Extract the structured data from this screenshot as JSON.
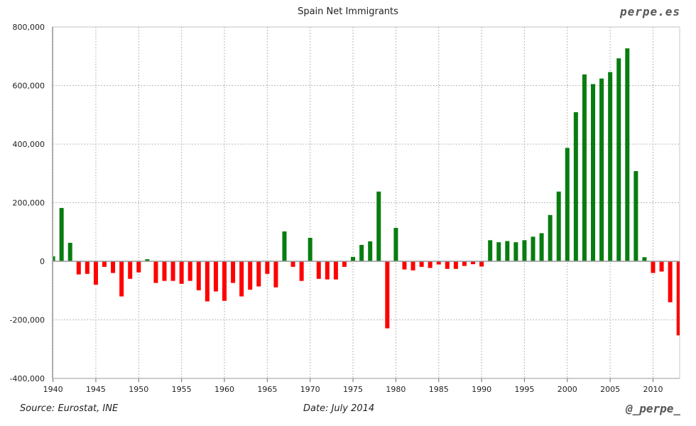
{
  "header": {
    "title": "Spain Net Immigrants",
    "brand": "perpe.es"
  },
  "footer": {
    "source": "Source: Eurostat, INE",
    "date": "Date: July 2014",
    "handle": "@_perpe_"
  },
  "colors": {
    "positive": "#077d10",
    "negative": "#ff0000",
    "grid": "#b8b8b8"
  },
  "chart_data": {
    "type": "bar",
    "title": "Spain Net Immigrants",
    "xlabel": "",
    "ylabel": "",
    "ylim": [
      -400000,
      800000
    ],
    "xlim": [
      1940,
      2013
    ],
    "grid": true,
    "y_ticks": [
      -400000,
      -200000,
      0,
      200000,
      400000,
      600000,
      800000
    ],
    "y_tick_labels": [
      "-400,000",
      "-200,000",
      "0",
      "200,000",
      "400,000",
      "600,000",
      "800,000"
    ],
    "x_ticks": [
      1940,
      1945,
      1950,
      1955,
      1960,
      1965,
      1970,
      1975,
      1980,
      1985,
      1990,
      1995,
      2000,
      2005,
      2010
    ],
    "x": [
      1940,
      1941,
      1942,
      1943,
      1944,
      1945,
      1946,
      1947,
      1948,
      1949,
      1950,
      1951,
      1952,
      1953,
      1954,
      1955,
      1956,
      1957,
      1958,
      1959,
      1960,
      1961,
      1962,
      1963,
      1964,
      1965,
      1966,
      1967,
      1968,
      1969,
      1970,
      1971,
      1972,
      1973,
      1974,
      1975,
      1976,
      1977,
      1978,
      1979,
      1980,
      1981,
      1982,
      1983,
      1984,
      1985,
      1986,
      1987,
      1988,
      1989,
      1990,
      1991,
      1992,
      1993,
      1994,
      1995,
      1996,
      1997,
      1998,
      1999,
      2000,
      2001,
      2002,
      2003,
      2004,
      2005,
      2006,
      2007,
      2008,
      2009,
      2010,
      2011,
      2012,
      2013
    ],
    "values": [
      17000,
      182000,
      63000,
      -45000,
      -43000,
      -80000,
      -19000,
      -40000,
      -120000,
      -60000,
      -38000,
      7000,
      -74000,
      -67000,
      -67000,
      -77000,
      -67000,
      -99000,
      -137000,
      -103000,
      -135000,
      -74000,
      -120000,
      -97000,
      -86000,
      -43000,
      -89000,
      102000,
      -19000,
      -67000,
      80000,
      -60000,
      -62000,
      -62000,
      -19000,
      15000,
      56000,
      68000,
      238000,
      -229000,
      114000,
      -28000,
      -31000,
      -19000,
      -23000,
      -11000,
      -26000,
      -26000,
      -16000,
      -10000,
      -18000,
      72000,
      65000,
      69000,
      65000,
      72000,
      84000,
      96000,
      158000,
      238000,
      387000,
      509000,
      638000,
      605000,
      624000,
      646000,
      693000,
      727000,
      308000,
      14000,
      -40000,
      -35000,
      -140000,
      -253000
    ]
  }
}
